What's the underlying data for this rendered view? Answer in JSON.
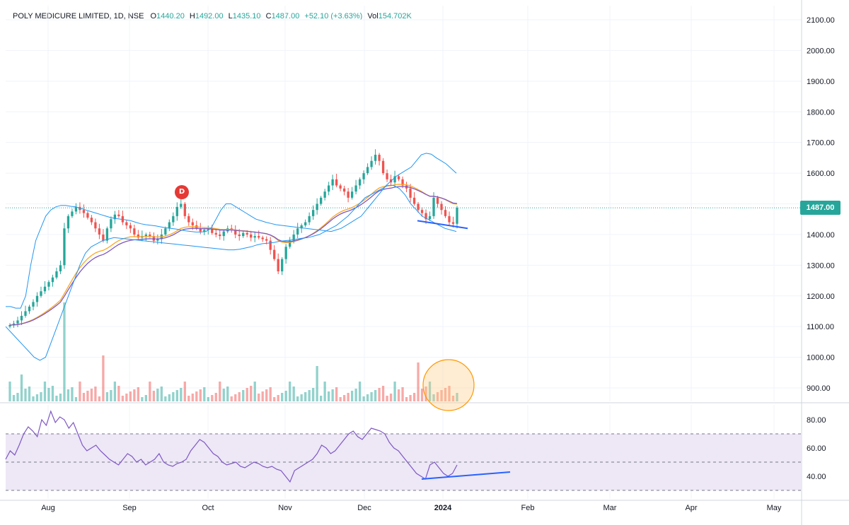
{
  "header": {
    "symbol": "POLY MEDICURE LIMITED, 1D, NSE",
    "open_label": "O",
    "open": "1440.20",
    "high_label": "H",
    "high": "1492.00",
    "low_label": "L",
    "low": "1435.10",
    "close_label": "C",
    "close": "1487.00",
    "change": "+52.10 (+3.63%)",
    "volume_label": "Vol",
    "volume": "154.702K"
  },
  "last_price_tag": "1487.00",
  "event_marker": "D",
  "colors": {
    "up": "#26a69a",
    "down": "#ef5350",
    "bollinger": "#2196f3",
    "ema_fast": "#f9a825",
    "ema_slow": "#7e57c2",
    "rsi": "#7e57c2",
    "trendline": "#2962ff",
    "rsi_band": "#ede7f6",
    "highlight": "#ffcc80"
  },
  "chart_data": [
    {
      "type": "candlestick",
      "title": "POLY MEDICURE LIMITED, 1D, NSE",
      "ylim": [
        860,
        2120
      ],
      "y_ticks": [
        "2100.00",
        "2000.00",
        "1900.00",
        "1800.00",
        "1700.00",
        "1600.00",
        "1500.00",
        "1400.00",
        "1300.00",
        "1200.00",
        "1100.00",
        "1000.00",
        "900.00"
      ],
      "x_ticks": [
        "Aug",
        "Sep",
        "Oct",
        "Nov",
        "Dec",
        "2024",
        "Feb",
        "Mar",
        "Apr",
        "May"
      ],
      "last_price": 1487.0,
      "close_approx": [
        1105,
        1110,
        1120,
        1135,
        1150,
        1165,
        1180,
        1200,
        1215,
        1230,
        1245,
        1260,
        1280,
        1300,
        1420,
        1460,
        1475,
        1490,
        1480,
        1470,
        1455,
        1440,
        1420,
        1400,
        1380,
        1420,
        1450,
        1465,
        1460,
        1440,
        1430,
        1420,
        1400,
        1390,
        1395,
        1400,
        1395,
        1380,
        1385,
        1400,
        1420,
        1440,
        1460,
        1490,
        1500,
        1460,
        1440,
        1430,
        1420,
        1410,
        1415,
        1420,
        1405,
        1400,
        1395,
        1410,
        1420,
        1415,
        1400,
        1395,
        1405,
        1400,
        1390,
        1395,
        1390,
        1385,
        1380,
        1350,
        1320,
        1280,
        1320,
        1360,
        1380,
        1400,
        1420,
        1430,
        1440,
        1460,
        1480,
        1500,
        1520,
        1540,
        1560,
        1580,
        1560,
        1550,
        1540,
        1520,
        1540,
        1560,
        1580,
        1600,
        1620,
        1640,
        1660,
        1640,
        1600,
        1580,
        1570,
        1590,
        1580,
        1560,
        1550,
        1520,
        1500,
        1480,
        1470,
        1450,
        1460,
        1520,
        1500,
        1480,
        1460,
        1440,
        1435,
        1487
      ],
      "bollinger_upper_approx": [
        1165,
        1165,
        1160,
        1160,
        1200,
        1300,
        1380,
        1420,
        1460,
        1480,
        1490,
        1495,
        1495,
        1492,
        1490,
        1485,
        1480,
        1475,
        1470,
        1465,
        1460,
        1455,
        1452,
        1450,
        1448,
        1445,
        1440,
        1435,
        1432,
        1430,
        1428,
        1425,
        1422,
        1420,
        1418,
        1415,
        1412,
        1410,
        1408,
        1408,
        1410,
        1420,
        1450,
        1480,
        1500,
        1500,
        1490,
        1480,
        1470,
        1460,
        1450,
        1445,
        1440,
        1436,
        1432,
        1430,
        1428,
        1426,
        1424,
        1422,
        1420,
        1418,
        1416,
        1414,
        1412,
        1410,
        1415,
        1420,
        1430,
        1440,
        1450,
        1460,
        1480,
        1500,
        1520,
        1540,
        1560,
        1575,
        1590,
        1600,
        1610,
        1620,
        1640,
        1660,
        1665,
        1662,
        1650,
        1640,
        1630,
        1615,
        1600
      ],
      "bollinger_lower_approx": [
        1100,
        1080,
        1060,
        1040,
        1020,
        1000,
        990,
        1000,
        1050,
        1100,
        1150,
        1200,
        1250,
        1300,
        1340,
        1360,
        1370,
        1380,
        1385,
        1390,
        1388,
        1386,
        1384,
        1382,
        1380,
        1378,
        1376,
        1374,
        1372,
        1370,
        1368,
        1366,
        1364,
        1362,
        1360,
        1358,
        1356,
        1354,
        1352,
        1350,
        1350,
        1352,
        1356,
        1360,
        1366,
        1370,
        1372,
        1374,
        1378,
        1380,
        1382,
        1385,
        1388,
        1390,
        1395,
        1400,
        1410,
        1420,
        1430,
        1445,
        1460,
        1480,
        1500,
        1520,
        1530,
        1540,
        1550,
        1560,
        1560,
        1550,
        1530,
        1500,
        1480,
        1460,
        1450,
        1440,
        1430,
        1420,
        1415,
        1410
      ],
      "volume_highlight": "recent volume cluster circled"
    },
    {
      "type": "line",
      "name": "RSI",
      "ylim": [
        25,
        90
      ],
      "y_ticks": [
        "80.00",
        "60.00",
        "40.00"
      ],
      "levels": [
        70,
        50,
        30
      ],
      "values_approx": [
        52,
        58,
        55,
        62,
        70,
        75,
        72,
        68,
        80,
        76,
        86,
        78,
        82,
        80,
        74,
        78,
        70,
        62,
        58,
        60,
        62,
        58,
        55,
        52,
        50,
        48,
        52,
        56,
        54,
        50,
        52,
        48,
        50,
        52,
        56,
        50,
        48,
        47,
        49,
        50,
        52,
        58,
        62,
        66,
        64,
        60,
        56,
        54,
        50,
        48,
        49,
        50,
        47,
        46,
        48,
        50,
        49,
        47,
        46,
        47,
        45,
        44,
        40,
        36,
        44,
        46,
        48,
        50,
        52,
        56,
        62,
        60,
        56,
        58,
        62,
        66,
        70,
        72,
        68,
        66,
        70,
        74,
        73,
        72,
        70,
        64,
        60,
        58,
        54,
        50,
        46,
        42,
        40,
        38,
        48,
        50,
        46,
        42,
        40,
        42,
        48
      ]
    }
  ]
}
